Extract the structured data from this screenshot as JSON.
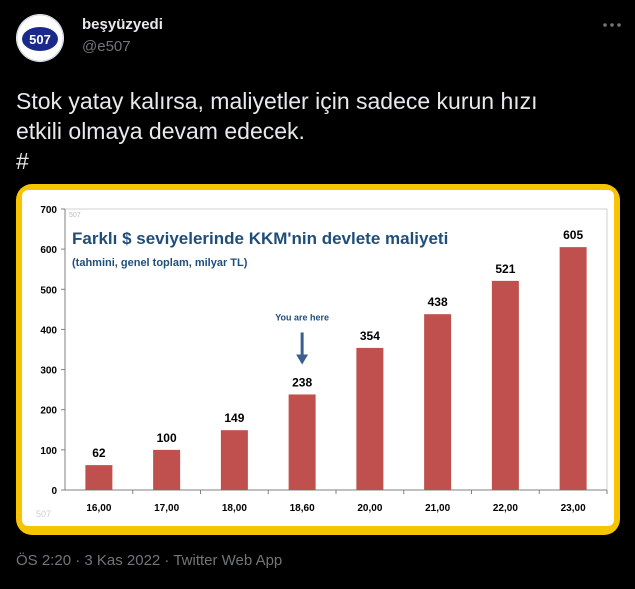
{
  "tweet": {
    "display_name": "beşyüzyedi",
    "handle": "@e507",
    "avatar_text": "507",
    "text_lines": [
      "Stok yatay kalırsa, maliyetler için sadece kurun hızı",
      "etkili olmaya devam edecek.",
      "#"
    ],
    "timestamp": "ÖS 2:20 · 3 Kas 2022 · Twitter Web App",
    "icons": {
      "more": "more-horizontal-icon",
      "avatar": "avatar-logo"
    }
  },
  "colors": {
    "background": "#000000",
    "frame": "#f6c400",
    "bar": "#c0504d",
    "title": "#1f4e79",
    "meta": "#71767b"
  },
  "chart_data": {
    "type": "bar",
    "title": "Farklı $ seviyelerinde KKM'nin devlete maliyeti",
    "subtitle": "(tahmini, genel toplam, milyar TL)",
    "annotation": "You are here",
    "annotation_category_index": 3,
    "watermark": "507",
    "categories": [
      "16,00",
      "17,00",
      "18,00",
      "18,60",
      "20,00",
      "21,00",
      "22,00",
      "23,00"
    ],
    "values": [
      62,
      100,
      149,
      238,
      354,
      438,
      521,
      605
    ],
    "ylim": [
      0,
      700
    ],
    "yticks": [
      0,
      100,
      200,
      300,
      400,
      500,
      600,
      700
    ],
    "grid": false
  }
}
